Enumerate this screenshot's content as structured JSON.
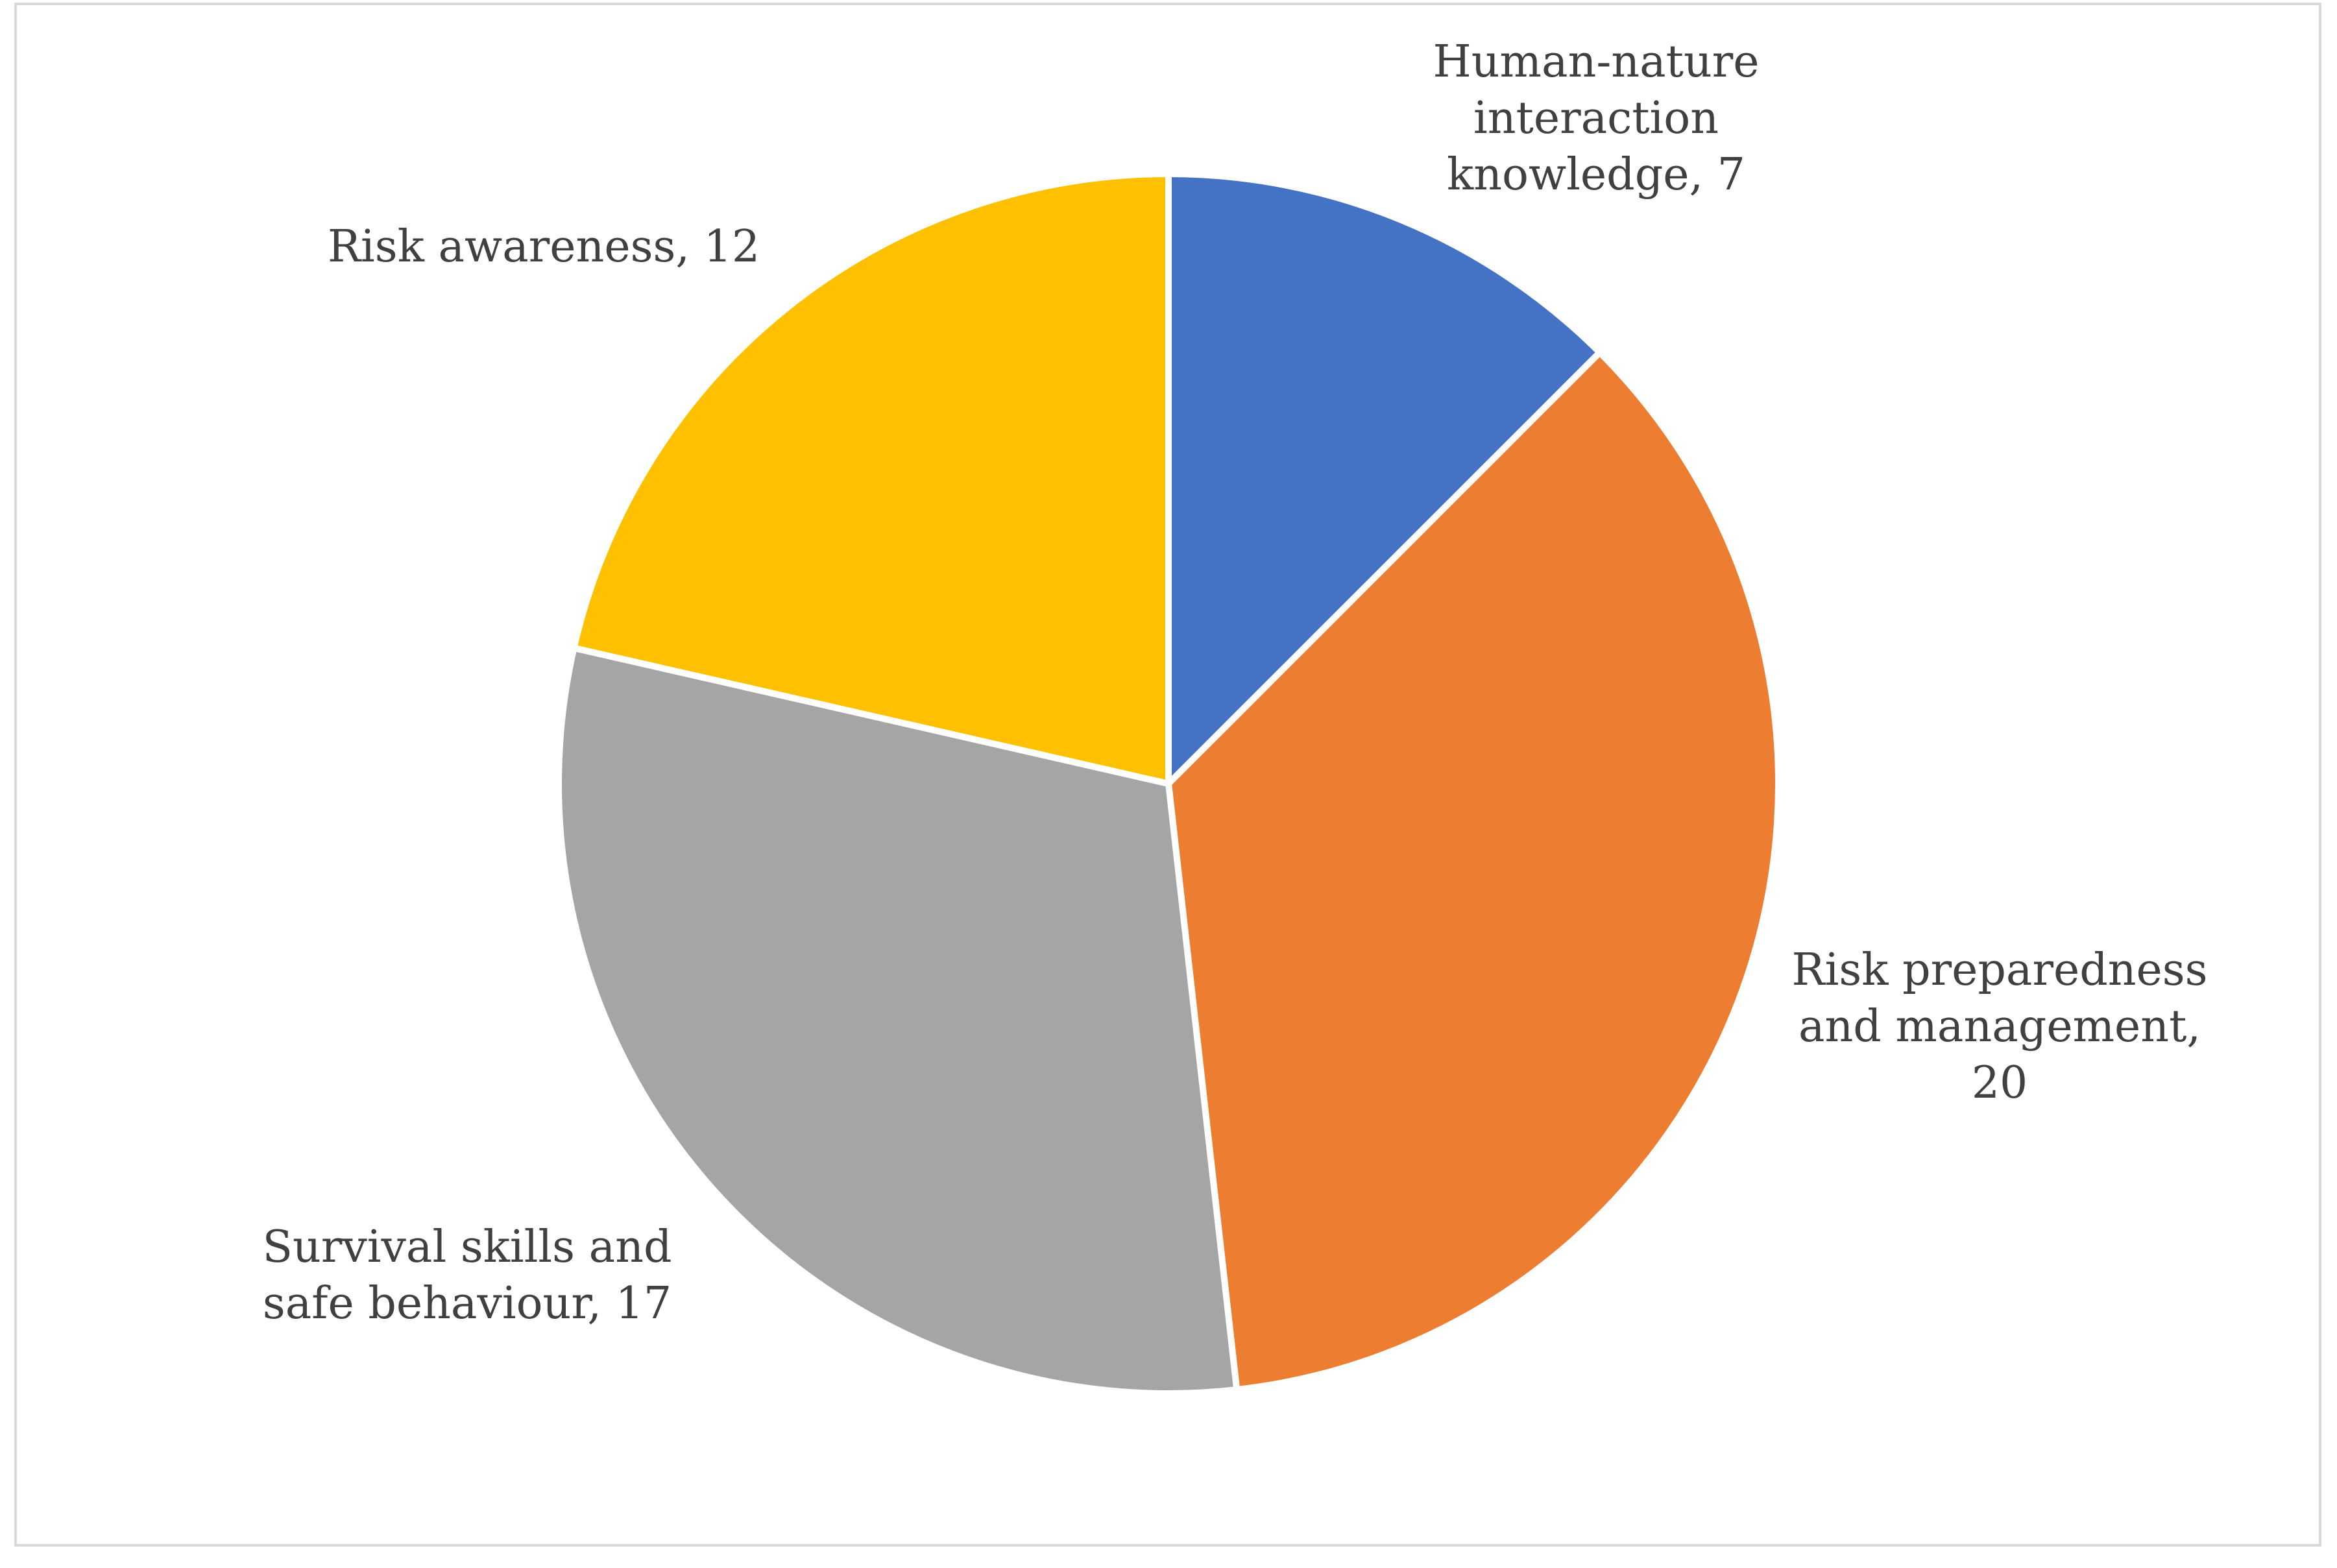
{
  "chart_data": {
    "type": "pie",
    "title": "",
    "slices": [
      {
        "label": "Human-nature interaction knowledge",
        "value": 7,
        "color": "#4472c4",
        "label_lines": [
          "Human-nature",
          "interaction",
          "knowledge, 7"
        ]
      },
      {
        "label": "Risk preparedness and management",
        "value": 20,
        "color": "#ed7d31",
        "label_lines": [
          "Risk preparedness",
          "and management,",
          "20"
        ]
      },
      {
        "label": "Survival skills and safe behaviour",
        "value": 17,
        "color": "#a5a5a5",
        "label_lines": [
          "Survival skills and",
          "safe behaviour, 17"
        ]
      },
      {
        "label": "Risk awareness",
        "value": 12,
        "color": "#ffc000",
        "label_lines": [
          "Risk awareness, 12"
        ]
      }
    ],
    "start_angle": "12 o'clock",
    "direction": "clockwise",
    "data_labels": "category name and value, outside end",
    "legend": "none"
  }
}
